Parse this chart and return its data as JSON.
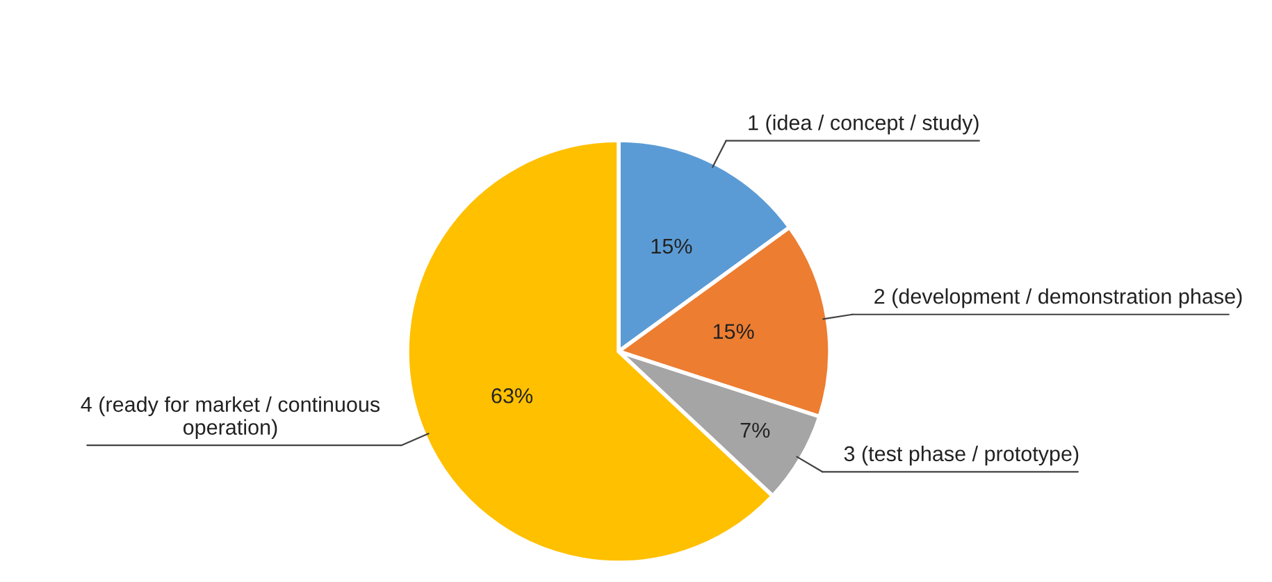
{
  "chart_data": {
    "type": "pie",
    "categories": [
      "1 (idea / concept / study)",
      "2 (development / demonstration phase)",
      "3 (test phase / prototype)",
      "4 (ready for market / continuous\noperation)"
    ],
    "values": [
      15,
      15,
      7,
      63
    ],
    "value_labels": [
      "15%",
      "15%",
      "7%",
      "63%"
    ],
    "colors": [
      "#5b9bd5",
      "#ed7d31",
      "#a5a5a5",
      "#ffc000"
    ],
    "legend": false
  }
}
